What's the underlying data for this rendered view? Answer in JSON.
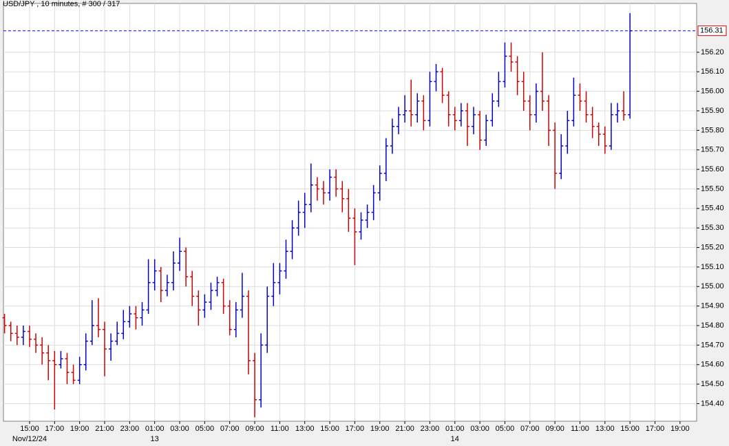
{
  "chart_data": {
    "type": "ohlc",
    "title": "USD/JPY , 10 minutes, # 300 / 317",
    "xlim": [
      12.91,
      68.33
    ],
    "ylim": [
      154.31,
      156.45
    ],
    "grid": true,
    "up_color": "#0000cc",
    "down_color": "#cc0000",
    "last_price": 156.31,
    "last_price_color": "#0000ff",
    "xticks": [
      {
        "value": 15,
        "label": "15:00"
      },
      {
        "value": 17,
        "label": "17:00"
      },
      {
        "value": 19,
        "label": "19:00"
      },
      {
        "value": 21,
        "label": "21:00"
      },
      {
        "value": 23,
        "label": "23:00"
      },
      {
        "value": 25,
        "label": "01:00"
      },
      {
        "value": 27,
        "label": "03:00"
      },
      {
        "value": 29,
        "label": "05:00"
      },
      {
        "value": 31,
        "label": "07:00"
      },
      {
        "value": 33,
        "label": "09:00"
      },
      {
        "value": 35,
        "label": "11:00"
      },
      {
        "value": 37,
        "label": "13:00"
      },
      {
        "value": 39,
        "label": "15:00"
      },
      {
        "value": 41,
        "label": "17:00"
      },
      {
        "value": 43,
        "label": "19:00"
      },
      {
        "value": 45,
        "label": "21:00"
      },
      {
        "value": 47,
        "label": "23:00"
      },
      {
        "value": 49,
        "label": "01:00"
      },
      {
        "value": 51,
        "label": "03:00"
      },
      {
        "value": 53,
        "label": "05:00"
      },
      {
        "value": 55,
        "label": "07:00"
      },
      {
        "value": 57,
        "label": "09:00"
      },
      {
        "value": 59,
        "label": "11:00"
      },
      {
        "value": 61,
        "label": "13:00"
      },
      {
        "value": 63,
        "label": "15:00"
      },
      {
        "value": 65,
        "label": "17:00"
      },
      {
        "value": 67,
        "label": "19:00"
      }
    ],
    "date_labels": [
      {
        "value": 15,
        "label": "Nov/12/24"
      },
      {
        "value": 25,
        "label": "13"
      },
      {
        "value": 49,
        "label": "14"
      }
    ],
    "yticks": [
      {
        "value": 154.4,
        "label": "154.40"
      },
      {
        "value": 154.5,
        "label": "154.50"
      },
      {
        "value": 154.6,
        "label": "154.60"
      },
      {
        "value": 154.7,
        "label": "154.70"
      },
      {
        "value": 154.8,
        "label": "154.80"
      },
      {
        "value": 154.9,
        "label": "154.90"
      },
      {
        "value": 155.0,
        "label": "155.00"
      },
      {
        "value": 155.1,
        "label": "155.10"
      },
      {
        "value": 155.2,
        "label": "155.20"
      },
      {
        "value": 155.3,
        "label": "155.30"
      },
      {
        "value": 155.4,
        "label": "155.40"
      },
      {
        "value": 155.5,
        "label": "155.50"
      },
      {
        "value": 155.6,
        "label": "155.60"
      },
      {
        "value": 155.7,
        "label": "155.70"
      },
      {
        "value": 155.8,
        "label": "155.80"
      },
      {
        "value": 155.9,
        "label": "155.90"
      },
      {
        "value": 156.0,
        "label": "156.00"
      },
      {
        "value": 156.1,
        "label": "156.10"
      },
      {
        "value": 156.2,
        "label": "156.20"
      }
    ],
    "bars": [
      [
        13,
        154.84,
        154.86,
        154.76,
        154.8
      ],
      [
        13.5,
        154.8,
        154.82,
        154.72,
        154.76
      ],
      [
        14,
        154.76,
        154.8,
        154.7,
        154.74
      ],
      [
        14.5,
        154.74,
        154.8,
        154.7,
        154.77
      ],
      [
        15,
        154.77,
        154.8,
        154.69,
        154.73
      ],
      [
        15.5,
        154.73,
        154.76,
        154.66,
        154.7
      ],
      [
        16,
        154.7,
        154.74,
        154.6,
        154.66
      ],
      [
        16.5,
        154.66,
        154.7,
        154.52,
        154.62
      ],
      [
        17,
        154.62,
        154.67,
        154.37,
        154.6
      ],
      [
        17.5,
        154.6,
        154.67,
        154.58,
        154.63
      ],
      [
        18,
        154.63,
        154.66,
        154.5,
        154.56
      ],
      [
        18.5,
        154.56,
        154.6,
        154.5,
        154.52
      ],
      [
        19,
        154.52,
        154.64,
        154.5,
        154.6
      ],
      [
        19.5,
        154.6,
        154.76,
        154.57,
        154.72
      ],
      [
        20,
        154.72,
        154.93,
        154.7,
        154.8
      ],
      [
        20.5,
        154.8,
        154.94,
        154.74,
        154.78
      ],
      [
        21,
        154.78,
        154.82,
        154.54,
        154.68
      ],
      [
        21.5,
        154.68,
        154.76,
        154.62,
        154.72
      ],
      [
        22,
        154.72,
        154.82,
        154.7,
        154.76
      ],
      [
        22.5,
        154.76,
        154.88,
        154.73,
        154.82
      ],
      [
        23,
        154.82,
        154.9,
        154.79,
        154.86
      ],
      [
        23.5,
        154.86,
        154.9,
        154.78,
        154.84
      ],
      [
        24,
        154.84,
        154.92,
        154.8,
        154.88
      ],
      [
        24.5,
        154.88,
        155.14,
        154.86,
        155.02
      ],
      [
        25,
        155.02,
        155.14,
        154.98,
        155.08
      ],
      [
        25.5,
        155.08,
        155.1,
        154.92,
        154.98
      ],
      [
        26,
        154.98,
        155.06,
        154.95,
        155.02
      ],
      [
        26.5,
        155.02,
        155.18,
        154.98,
        155.12
      ],
      [
        27,
        155.12,
        155.25,
        155.08,
        155.18
      ],
      [
        27.5,
        155.18,
        155.2,
        155.0,
        155.05
      ],
      [
        28,
        155.05,
        155.08,
        154.9,
        154.95
      ],
      [
        28.5,
        154.95,
        154.98,
        154.8,
        154.88
      ],
      [
        29,
        154.88,
        154.96,
        154.84,
        154.92
      ],
      [
        29.5,
        154.92,
        155.02,
        154.88,
        154.98
      ],
      [
        30,
        154.98,
        155.05,
        154.95,
        155.02
      ],
      [
        30.5,
        155.02,
        155.04,
        154.86,
        154.9
      ],
      [
        31,
        154.9,
        154.93,
        154.75,
        154.78
      ],
      [
        31.5,
        154.78,
        154.92,
        154.74,
        154.88
      ],
      [
        32,
        154.88,
        155.07,
        154.84,
        154.95
      ],
      [
        32.5,
        154.95,
        154.98,
        154.55,
        154.62
      ],
      [
        33,
        154.62,
        154.66,
        154.33,
        154.42
      ],
      [
        33.5,
        154.42,
        154.76,
        154.38,
        154.7
      ],
      [
        34,
        154.7,
        155.0,
        154.66,
        154.95
      ],
      [
        34.5,
        154.95,
        155.12,
        154.9,
        155.02
      ],
      [
        35,
        155.02,
        155.12,
        154.96,
        155.08
      ],
      [
        35.5,
        155.08,
        155.24,
        155.04,
        155.18
      ],
      [
        36,
        155.18,
        155.34,
        155.14,
        155.3
      ],
      [
        36.5,
        155.3,
        155.44,
        155.26,
        155.38
      ],
      [
        37,
        155.38,
        155.48,
        155.3,
        155.42
      ],
      [
        37.5,
        155.42,
        155.63,
        155.38,
        155.52
      ],
      [
        38,
        155.52,
        155.56,
        155.44,
        155.5
      ],
      [
        38.5,
        155.5,
        155.54,
        155.42,
        155.48
      ],
      [
        39,
        155.48,
        155.6,
        155.44,
        155.56
      ],
      [
        39.5,
        155.56,
        155.6,
        155.46,
        155.5
      ],
      [
        40,
        155.5,
        155.54,
        155.38,
        155.45
      ],
      [
        40.5,
        155.45,
        155.5,
        155.28,
        155.35
      ],
      [
        41,
        155.35,
        155.4,
        155.11,
        155.28
      ],
      [
        41.5,
        155.28,
        155.38,
        155.24,
        155.34
      ],
      [
        42,
        155.34,
        155.42,
        155.3,
        155.38
      ],
      [
        42.5,
        155.38,
        155.52,
        155.34,
        155.48
      ],
      [
        43,
        155.48,
        155.62,
        155.44,
        155.58
      ],
      [
        43.5,
        155.58,
        155.76,
        155.54,
        155.72
      ],
      [
        44,
        155.72,
        155.86,
        155.68,
        155.82
      ],
      [
        44.5,
        155.82,
        155.92,
        155.78,
        155.88
      ],
      [
        45,
        155.88,
        155.98,
        155.84,
        155.9
      ],
      [
        45.5,
        155.9,
        156.06,
        155.82,
        155.88
      ],
      [
        46,
        155.88,
        155.99,
        155.84,
        155.95
      ],
      [
        46.5,
        155.95,
        155.98,
        155.8,
        155.85
      ],
      [
        47,
        155.85,
        156.1,
        155.82,
        156.05
      ],
      [
        47.5,
        156.05,
        156.14,
        156.0,
        156.1
      ],
      [
        48,
        156.1,
        156.12,
        155.94,
        155.98
      ],
      [
        48.5,
        155.98,
        156.0,
        155.82,
        155.88
      ],
      [
        49,
        155.88,
        155.92,
        155.8,
        155.85
      ],
      [
        49.5,
        155.85,
        155.94,
        155.82,
        155.9
      ],
      [
        50,
        155.9,
        155.94,
        155.72,
        155.82
      ],
      [
        50.5,
        155.82,
        155.92,
        155.78,
        155.88
      ],
      [
        51,
        155.88,
        155.9,
        155.7,
        155.75
      ],
      [
        51.5,
        155.75,
        155.88,
        155.72,
        155.85
      ],
      [
        52,
        155.85,
        155.99,
        155.82,
        155.95
      ],
      [
        52.5,
        155.95,
        156.1,
        155.92,
        156.05
      ],
      [
        53,
        156.05,
        156.25,
        156.02,
        156.18
      ],
      [
        53.5,
        156.18,
        156.25,
        156.1,
        156.15
      ],
      [
        54,
        156.15,
        156.18,
        155.98,
        156.05
      ],
      [
        54.5,
        156.05,
        156.1,
        155.9,
        155.95
      ],
      [
        55,
        155.95,
        155.98,
        155.8,
        155.88
      ],
      [
        55.5,
        155.88,
        156.04,
        155.84,
        156.0
      ],
      [
        56,
        156.0,
        156.2,
        155.9,
        155.95
      ],
      [
        56.5,
        155.95,
        155.98,
        155.72,
        155.8
      ],
      [
        57,
        155.8,
        155.84,
        155.5,
        155.58
      ],
      [
        57.5,
        155.58,
        155.78,
        155.55,
        155.72
      ],
      [
        58,
        155.72,
        155.9,
        155.68,
        155.85
      ],
      [
        58.5,
        155.85,
        156.07,
        155.82,
        155.98
      ],
      [
        59,
        155.98,
        156.04,
        155.9,
        155.95
      ],
      [
        59.5,
        155.95,
        156.0,
        155.84,
        155.88
      ],
      [
        60,
        155.88,
        155.92,
        155.76,
        155.82
      ],
      [
        60.5,
        155.82,
        155.84,
        155.72,
        155.78
      ],
      [
        61,
        155.78,
        155.82,
        155.68,
        155.72
      ],
      [
        61.5,
        155.72,
        155.94,
        155.7,
        155.88
      ],
      [
        62,
        155.88,
        155.94,
        155.84,
        155.9
      ],
      [
        62.5,
        155.9,
        156.0,
        155.85,
        155.88
      ],
      [
        63,
        155.88,
        156.4,
        155.86,
        156.31
      ]
    ]
  }
}
